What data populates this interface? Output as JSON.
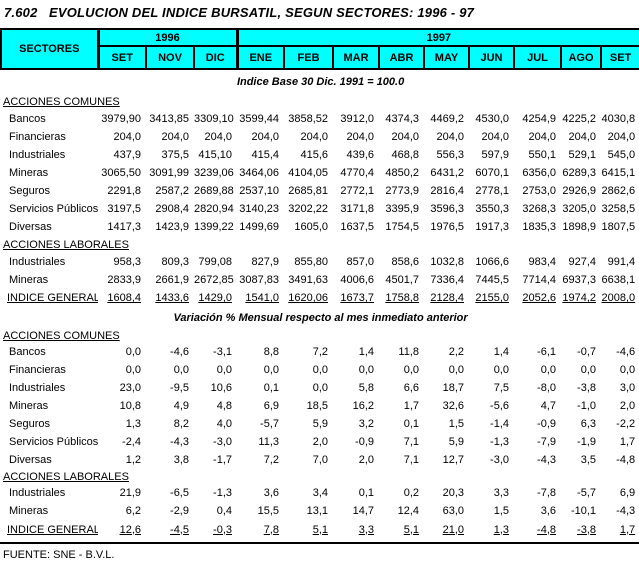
{
  "title": "7.602   EVOLUCION DEL INDICE BURSATIL, SEGUN SECTORES: 1996 - 97",
  "colors": {
    "header_bg": "#00FFFF",
    "border": "#000000"
  },
  "table": {
    "sectors_header": "SECTORES",
    "year_groups": [
      {
        "label": "1996",
        "span": 3
      },
      {
        "label": "1997",
        "span": 9
      }
    ],
    "months": [
      "SET",
      "NOV",
      "DIC",
      "ENE",
      "FEB",
      "MAR",
      "ABR",
      "MAY",
      "JUN",
      "JUL",
      "AGO",
      "SET"
    ]
  },
  "index_section": {
    "note": "Indice Base 30 Dic. 1991 = 100.0",
    "groups": [
      {
        "label": "ACCIONES COMUNES",
        "rows": [
          {
            "label": "Bancos",
            "values": [
              "3979,90",
              "3413,85",
              "3309,10",
              "3599,44",
              "3858,52",
              "3912,0",
              "4374,3",
              "4469,2",
              "4530,0",
              "4254,9",
              "4225,2",
              "4030,8"
            ]
          },
          {
            "label": "Financieras",
            "values": [
              "204,0",
              "204,0",
              "204,0",
              "204,0",
              "204,0",
              "204,0",
              "204,0",
              "204,0",
              "204,0",
              "204,0",
              "204,0",
              "204,0"
            ]
          },
          {
            "label": "Industriales",
            "values": [
              "437,9",
              "375,5",
              "415,10",
              "415,4",
              "415,6",
              "439,6",
              "468,8",
              "556,3",
              "597,9",
              "550,1",
              "529,1",
              "545,0"
            ]
          },
          {
            "label": "Mineras",
            "values": [
              "3065,50",
              "3091,99",
              "3239,06",
              "3464,06",
              "4104,05",
              "4770,4",
              "4850,2",
              "6431,2",
              "6070,1",
              "6356,0",
              "6289,3",
              "6415,1"
            ]
          },
          {
            "label": "Seguros",
            "values": [
              "2291,8",
              "2587,2",
              "2689,88",
              "2537,10",
              "2685,81",
              "2772,1",
              "2773,9",
              "2816,4",
              "2778,1",
              "2753,0",
              "2926,9",
              "2862,6"
            ]
          },
          {
            "label": "Servicios Públicos",
            "values": [
              "3197,5",
              "2908,4",
              "2820,94",
              "3140,23",
              "3202,22",
              "3171,8",
              "3395,9",
              "3596,3",
              "3550,3",
              "3268,3",
              "3205,0",
              "3258,5"
            ]
          },
          {
            "label": "Diversas",
            "values": [
              "1417,3",
              "1423,9",
              "1399,22",
              "1499,69",
              "1605,0",
              "1637,5",
              "1754,5",
              "1976,5",
              "1917,3",
              "1835,3",
              "1898,9",
              "1807,5"
            ]
          }
        ]
      },
      {
        "label": "ACCIONES LABORALES",
        "rows": [
          {
            "label": "Industriales",
            "values": [
              "958,3",
              "809,3",
              "799,08",
              "827,9",
              "855,80",
              "857,0",
              "858,6",
              "1032,8",
              "1066,6",
              "983,4",
              "927,4",
              "991,4"
            ]
          },
          {
            "label": "Mineras",
            "values": [
              "2833,9",
              "2661,9",
              "2672,85",
              "3087,83",
              "3491,63",
              "4006,6",
              "4501,7",
              "7336,4",
              "7445,5",
              "7714,4",
              "6937,3",
              "6638,1"
            ]
          }
        ]
      }
    ],
    "total_row": {
      "label": "INDICE GENERAL",
      "values": [
        "1608,4",
        "1433,6",
        "1429,0",
        "1541,0",
        "1620,06",
        "1673,7",
        "1758,8",
        "2128,4",
        "2155,0",
        "2052,6",
        "1974,2",
        "2008,0"
      ]
    }
  },
  "variation_section": {
    "note": "Variación % Mensual respecto al mes inmediato anterior",
    "groups": [
      {
        "label": "ACCIONES COMUNES",
        "rows": [
          {
            "label": "Bancos",
            "values": [
              "0,0",
              "-4,6",
              "-3,1",
              "8,8",
              "7,2",
              "1,4",
              "11,8",
              "2,2",
              "1,4",
              "-6,1",
              "-0,7",
              "-4,6"
            ]
          },
          {
            "label": "Financieras",
            "values": [
              "0,0",
              "0,0",
              "0,0",
              "0,0",
              "0,0",
              "0,0",
              "0,0",
              "0,0",
              "0,0",
              "0,0",
              "0,0",
              "0,0"
            ]
          },
          {
            "label": "Industriales",
            "values": [
              "23,0",
              "-9,5",
              "10,6",
              "0,1",
              "0,0",
              "5,8",
              "6,6",
              "18,7",
              "7,5",
              "-8,0",
              "-3,8",
              "3,0"
            ]
          },
          {
            "label": "Mineras",
            "values": [
              "10,8",
              "4,9",
              "4,8",
              "6,9",
              "18,5",
              "16,2",
              "1,7",
              "32,6",
              "-5,6",
              "4,7",
              "-1,0",
              "2,0"
            ]
          },
          {
            "label": "Seguros",
            "values": [
              "1,3",
              "8,2",
              "4,0",
              "-5,7",
              "5,9",
              "3,2",
              "0,1",
              "1,5",
              "-1,4",
              "-0,9",
              "6,3",
              "-2,2"
            ]
          },
          {
            "label": "Servicios Públicos",
            "values": [
              "-2,4",
              "-4,3",
              "-3,0",
              "11,3",
              "2,0",
              "-0,9",
              "7,1",
              "5,9",
              "-1,3",
              "-7,9",
              "-1,9",
              "1,7"
            ]
          },
          {
            "label": "Diversas",
            "values": [
              "1,2",
              "3,8",
              "-1,7",
              "7,2",
              "7,0",
              "2,0",
              "7,1",
              "12,7",
              "-3,0",
              "-4,3",
              "3,5",
              "-4,8"
            ]
          }
        ]
      },
      {
        "label": "ACCIONES LABORALES",
        "rows": [
          {
            "label": "Industriales",
            "values": [
              "21,9",
              "-6,5",
              "-1,3",
              "3,6",
              "3,4",
              "0,1",
              "0,2",
              "20,3",
              "3,3",
              "-7,8",
              "-5,7",
              "6,9"
            ]
          },
          {
            "label": "Mineras",
            "values": [
              "6,2",
              "-2,9",
              "0,4",
              "15,5",
              "13,1",
              "14,7",
              "12,4",
              "63,0",
              "1,5",
              "3,6",
              "-10,1",
              "-4,3"
            ]
          }
        ]
      }
    ],
    "total_row": {
      "label": "INDICE GENERAL",
      "values": [
        "12,6",
        "-4,5",
        "-0,3",
        "7,8",
        "5,1",
        "3,3",
        "5,1",
        "21,0",
        "1,3",
        "-4,8",
        "-3,8",
        "1,7"
      ]
    }
  },
  "footer": {
    "source": "FUENTE: SNE - B.V.L."
  }
}
